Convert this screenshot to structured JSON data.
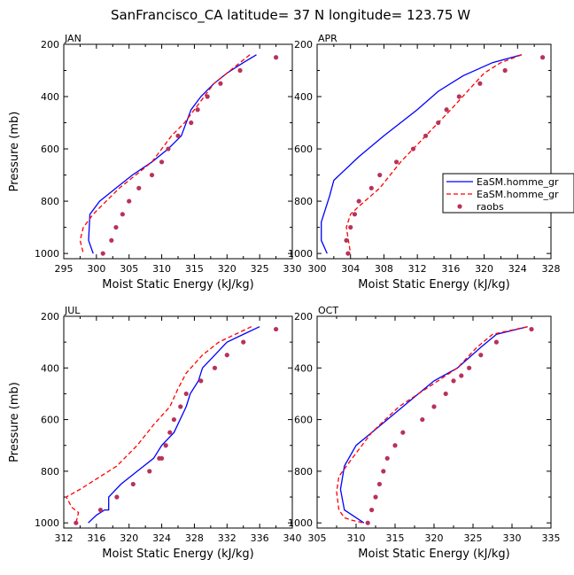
{
  "figure": {
    "title": "SanFrancisco_CA  latitude= 37 N longitude= 123.75 W"
  },
  "colors": {
    "homme1": "#0000ff",
    "homme2": "#ff0000",
    "raobs": "#b8325a"
  },
  "chart_data": [
    {
      "type": "line",
      "panel": "JAN",
      "xlabel": "Moist Static Energy (kJ/kg)",
      "ylabel": "Pressure (mb)",
      "xlim": [
        295,
        330
      ],
      "ylim": [
        200,
        1020
      ],
      "xticks": [
        295,
        300,
        305,
        310,
        315,
        320,
        325,
        330
      ],
      "yticks": [
        200,
        400,
        600,
        800,
        1000
      ],
      "series": [
        {
          "name": "EaSM.homme_gr",
          "style": "solid",
          "x": [
            324.5,
            322.5,
            320,
            318,
            316,
            314.5,
            313,
            311,
            308.5,
            305.5,
            303,
            300.5,
            299,
            298.8,
            299.5
          ],
          "y": [
            240,
            270,
            310,
            350,
            400,
            450,
            550,
            600,
            650,
            700,
            750,
            800,
            850,
            950,
            1000
          ]
        },
        {
          "name": "EaSM.homme_gr",
          "style": "dashed",
          "x": [
            323.5,
            322,
            320,
            318,
            316.5,
            315,
            313.5,
            311.5,
            308.5,
            306,
            303.5,
            301.5,
            299.5,
            298,
            297.5,
            298
          ],
          "y": [
            240,
            270,
            310,
            350,
            400,
            450,
            500,
            550,
            650,
            700,
            750,
            800,
            850,
            900,
            950,
            1000
          ]
        },
        {
          "name": "raobs",
          "style": "dots",
          "x": [
            327.5,
            322,
            319,
            317,
            315.5,
            314.5,
            312.5,
            311,
            310,
            308.5,
            306.5,
            305,
            304,
            303,
            302.3,
            301
          ],
          "y": [
            250,
            300,
            350,
            400,
            450,
            500,
            550,
            600,
            650,
            700,
            750,
            800,
            850,
            900,
            950,
            1000
          ]
        }
      ]
    },
    {
      "type": "line",
      "panel": "APR",
      "xlabel": "Moist Static Energy (kJ/kg)",
      "ylabel": "",
      "xlim": [
        300,
        328
      ],
      "ylim": [
        200,
        1020
      ],
      "xticks": [
        300,
        304,
        308,
        312,
        316,
        320,
        324,
        328
      ],
      "yticks": [
        200,
        400,
        600,
        800,
        1000
      ],
      "legend": {
        "position": "right",
        "entries": [
          "EaSM.homme_gr",
          "EaSM.homme_gr",
          "raobs"
        ]
      },
      "series": [
        {
          "name": "EaSM.homme_gr",
          "style": "solid",
          "x": [
            324.5,
            321,
            317.5,
            314.5,
            312,
            308,
            305,
            302,
            301.5,
            300.5,
            300.5,
            301.2
          ],
          "y": [
            240,
            270,
            320,
            380,
            450,
            550,
            630,
            720,
            780,
            880,
            950,
            1000
          ]
        },
        {
          "name": "EaSM.homme_gr",
          "style": "dashed",
          "x": [
            324.5,
            322,
            320,
            318,
            316,
            313,
            310,
            307.5,
            305,
            304,
            303.5,
            304
          ],
          "y": [
            240,
            270,
            310,
            380,
            450,
            550,
            650,
            750,
            820,
            850,
            900,
            1000
          ]
        },
        {
          "name": "raobs",
          "style": "dots",
          "x": [
            327,
            322.5,
            319.5,
            317,
            315.5,
            314.5,
            313,
            311.5,
            309.5,
            307.5,
            306.5,
            305,
            304.5,
            304,
            303.5,
            303.7
          ],
          "y": [
            250,
            300,
            350,
            400,
            450,
            500,
            550,
            600,
            650,
            700,
            750,
            800,
            850,
            900,
            950,
            1000
          ]
        }
      ]
    },
    {
      "type": "line",
      "panel": "JUL",
      "xlabel": "Moist Static Energy (kJ/kg)",
      "ylabel": "Pressure (mb)",
      "xlim": [
        312,
        340
      ],
      "ylim": [
        200,
        1020
      ],
      "xticks": [
        312,
        316,
        320,
        324,
        328,
        332,
        336,
        340
      ],
      "yticks": [
        200,
        400,
        600,
        800,
        1000
      ],
      "series": [
        {
          "name": "EaSM.homme_gr",
          "style": "solid",
          "x": [
            336,
            334,
            332,
            330.5,
            329,
            328.5,
            327.5,
            327,
            325.5,
            324,
            323,
            321,
            319,
            317.5,
            317.5,
            317,
            316,
            315
          ],
          "y": [
            240,
            270,
            300,
            350,
            400,
            450,
            500,
            550,
            650,
            700,
            750,
            800,
            850,
            900,
            950,
            950,
            970,
            1000
          ]
        },
        {
          "name": "EaSM.homme_gr",
          "style": "dashed",
          "x": [
            335,
            333,
            331,
            329,
            327,
            326,
            325,
            323,
            321,
            318.5,
            316,
            314,
            312.3,
            313,
            313.8,
            313.5
          ],
          "y": [
            240,
            270,
            300,
            350,
            420,
            480,
            550,
            620,
            700,
            780,
            830,
            870,
            900,
            940,
            960,
            1000
          ]
        },
        {
          "name": "raobs",
          "style": "dots",
          "x": [
            338,
            334,
            332,
            330.5,
            328.8,
            327,
            326.3,
            325.5,
            325,
            324.5,
            324,
            323.7,
            322.5,
            320.5,
            318.5,
            316.5,
            313.5
          ],
          "y": [
            250,
            300,
            350,
            400,
            450,
            500,
            550,
            600,
            650,
            700,
            750,
            750,
            800,
            850,
            900,
            950,
            1000
          ]
        }
      ]
    },
    {
      "type": "line",
      "panel": "OCT",
      "xlabel": "Moist Static Energy (kJ/kg)",
      "ylabel": "",
      "xlim": [
        305,
        335
      ],
      "ylim": [
        200,
        1020
      ],
      "xticks": [
        305,
        310,
        315,
        320,
        325,
        330,
        335
      ],
      "yticks": [
        200,
        400,
        600,
        800,
        1000
      ],
      "series": [
        {
          "name": "EaSM.homme_gr",
          "style": "solid",
          "x": [
            332,
            328,
            326,
            323,
            320,
            318,
            316,
            314,
            312,
            310,
            308.5,
            308,
            308.5,
            310,
            311
          ],
          "y": [
            240,
            270,
            320,
            400,
            450,
            500,
            550,
            600,
            650,
            700,
            780,
            870,
            950,
            980,
            1000
          ]
        },
        {
          "name": "EaSM.homme_gr",
          "style": "dashed",
          "x": [
            332,
            327.5,
            325.5,
            323,
            320.5,
            318,
            315.5,
            312,
            309.5,
            307.8,
            307.5,
            307.8,
            308.5,
            309.5,
            311
          ],
          "y": [
            240,
            270,
            320,
            400,
            450,
            500,
            550,
            650,
            750,
            820,
            880,
            950,
            980,
            990,
            1000
          ]
        },
        {
          "name": "raobs",
          "style": "dots",
          "x": [
            332.5,
            328,
            326,
            324.5,
            323.5,
            322.5,
            321.5,
            320,
            318.5,
            316,
            315,
            314,
            313.5,
            313,
            312.5,
            312,
            311.5
          ],
          "y": [
            250,
            300,
            350,
            400,
            430,
            450,
            500,
            550,
            600,
            650,
            700,
            750,
            800,
            850,
            900,
            950,
            1000
          ]
        }
      ]
    }
  ]
}
